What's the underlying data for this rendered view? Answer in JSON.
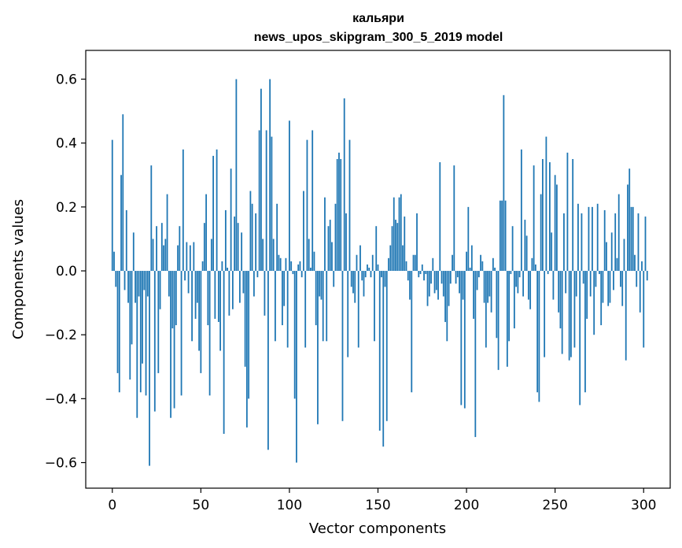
{
  "chart_data": {
    "type": "bar",
    "title": [
      "кальяри",
      "news_upos_skipgram_300_5_2019 model"
    ],
    "xlabel": "Vector components",
    "ylabel": "Components values",
    "xlim": [
      -15,
      315
    ],
    "ylim": [
      -0.68,
      0.69
    ],
    "xticks": [
      0,
      50,
      100,
      150,
      200,
      250,
      300
    ],
    "yticks": [
      -0.6,
      -0.4,
      -0.2,
      0.0,
      0.2,
      0.4,
      0.6
    ],
    "ytick_labels": [
      "−0.6",
      "−0.4",
      "−0.2",
      "0.0",
      "0.2",
      "0.4",
      "0.6"
    ],
    "grid": false,
    "series": [
      {
        "color": "#1f77b4",
        "values": [
          0.41,
          0.06,
          -0.05,
          -0.32,
          -0.38,
          0.3,
          0.49,
          -0.06,
          0.19,
          -0.1,
          -0.34,
          -0.23,
          0.12,
          -0.1,
          -0.46,
          -0.08,
          -0.38,
          -0.29,
          -0.06,
          -0.39,
          -0.08,
          -0.61,
          0.33,
          0.1,
          -0.44,
          0.14,
          -0.32,
          -0.12,
          0.15,
          0.08,
          0.1,
          0.24,
          -0.08,
          -0.46,
          -0.18,
          -0.43,
          -0.17,
          0.08,
          0.14,
          -0.39,
          0.38,
          -0.03,
          0.09,
          -0.07,
          0.08,
          -0.22,
          0.09,
          -0.15,
          -0.1,
          -0.25,
          -0.32,
          0.03,
          0.15,
          0.24,
          -0.17,
          -0.39,
          0.1,
          0.36,
          -0.15,
          0.38,
          -0.16,
          -0.25,
          0.03,
          -0.51,
          0.19,
          0.01,
          -0.14,
          0.32,
          -0.12,
          0.17,
          0.6,
          0.15,
          -0.1,
          0.12,
          -0.07,
          -0.3,
          -0.49,
          -0.4,
          0.25,
          0.21,
          -0.08,
          0.18,
          -0.02,
          0.44,
          0.57,
          0.1,
          -0.14,
          0.44,
          -0.56,
          0.6,
          0.42,
          0.1,
          -0.22,
          0.21,
          0.05,
          0.04,
          -0.17,
          -0.11,
          0.04,
          -0.24,
          0.47,
          0.03,
          -0.01,
          -0.4,
          -0.6,
          0.02,
          0.03,
          -0.02,
          0.25,
          -0.24,
          0.41,
          0.1,
          0.01,
          0.44,
          0.06,
          -0.17,
          -0.48,
          -0.08,
          -0.09,
          -0.22,
          0.23,
          -0.22,
          0.14,
          0.16,
          0.09,
          -0.05,
          0.21,
          0.35,
          0.37,
          0.35,
          -0.47,
          0.54,
          0.18,
          -0.27,
          0.41,
          -0.05,
          -0.07,
          -0.1,
          0.05,
          -0.24,
          0.08,
          -0.03,
          -0.08,
          -0.02,
          0.02,
          0.01,
          -0.02,
          0.05,
          -0.22,
          0.14,
          0.02,
          -0.5,
          -0.02,
          -0.55,
          -0.05,
          -0.47,
          0.04,
          0.08,
          0.14,
          0.23,
          0.16,
          0.15,
          0.23,
          0.24,
          0.08,
          0.17,
          0.03,
          -0.03,
          -0.09,
          -0.38,
          0.05,
          0.05,
          0.18,
          -0.02,
          -0.01,
          0.02,
          -0.03,
          -0.01,
          -0.11,
          -0.08,
          -0.04,
          0.04,
          -0.07,
          -0.06,
          -0.09,
          0.34,
          -0.04,
          -0.08,
          -0.16,
          -0.22,
          -0.11,
          -0.04,
          0.05,
          0.33,
          -0.04,
          -0.02,
          -0.07,
          -0.42,
          -0.09,
          -0.43,
          0.06,
          0.2,
          0.01,
          0.08,
          -0.15,
          -0.52,
          -0.06,
          -0.02,
          0.05,
          0.03,
          -0.1,
          -0.24,
          -0.1,
          -0.08,
          -0.13,
          0.04,
          0.01,
          -0.21,
          -0.31,
          0.22,
          0.22,
          0.55,
          0.22,
          -0.3,
          -0.22,
          -0.01,
          0.14,
          -0.18,
          -0.05,
          -0.07,
          -0.02,
          0.38,
          -0.08,
          0.16,
          0.11,
          -0.09,
          -0.12,
          0.04,
          0.33,
          0.02,
          -0.38,
          -0.41,
          0.24,
          0.35,
          -0.27,
          0.42,
          -0.01,
          0.34,
          0.12,
          -0.09,
          0.3,
          0.27,
          -0.13,
          -0.18,
          -0.26,
          0.18,
          -0.07,
          0.37,
          -0.28,
          -0.27,
          0.35,
          -0.24,
          -0.08,
          0.21,
          -0.42,
          0.18,
          -0.04,
          -0.38,
          -0.15,
          0.2,
          -0.08,
          0.2,
          -0.2,
          -0.05,
          0.21,
          -0.01,
          -0.17,
          -0.1,
          0.19,
          0.09,
          -0.11,
          -0.1,
          0.12,
          -0.06,
          0.18,
          0.04,
          0.24,
          -0.05,
          -0.11,
          0.1,
          -0.28,
          0.27,
          0.32,
          0.2,
          0.2,
          0.05,
          -0.05,
          0.18,
          -0.13,
          0.03,
          -0.24,
          0.17,
          -0.03
        ]
      }
    ]
  }
}
